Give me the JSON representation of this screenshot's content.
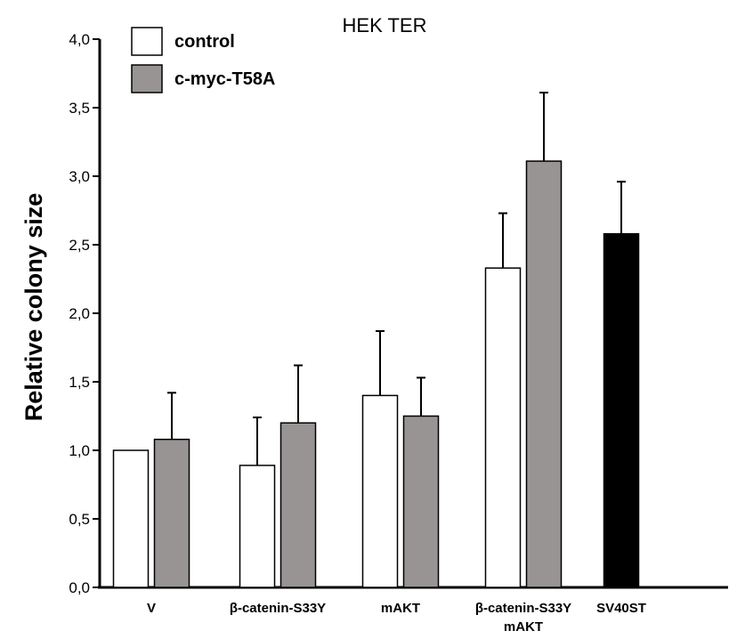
{
  "chart_data": {
    "type": "bar",
    "title": "HEK TER",
    "ylabel": "Relative colony size",
    "xlabel": "",
    "ylim": [
      0,
      4
    ],
    "yticks": [
      "0,0",
      "0,5",
      "1,0",
      "1,5",
      "2,0",
      "2,5",
      "3,0",
      "3,5",
      "4,0"
    ],
    "categories": [
      [
        "V"
      ],
      [
        "β-catenin-S33Y"
      ],
      [
        "mAKT"
      ],
      [
        "β-catenin-S33Y",
        "mAKT"
      ],
      [
        "SV40ST"
      ]
    ],
    "series": [
      {
        "name": "control",
        "color": "#ffffff",
        "values": [
          1.0,
          0.89,
          1.4,
          2.33,
          null
        ],
        "errors": [
          0.0,
          0.35,
          0.47,
          0.4,
          null
        ]
      },
      {
        "name": "c-myc-T58A",
        "color": "#999494",
        "values": [
          1.08,
          1.2,
          1.25,
          3.11,
          null
        ],
        "errors": [
          0.34,
          0.42,
          0.28,
          0.5,
          null
        ]
      },
      {
        "name": "",
        "color": "#000000",
        "values": [
          null,
          null,
          null,
          null,
          2.58
        ],
        "errors": [
          null,
          null,
          null,
          null,
          0.38
        ]
      }
    ],
    "legend": {
      "placement": "top-left"
    },
    "grid": false
  }
}
